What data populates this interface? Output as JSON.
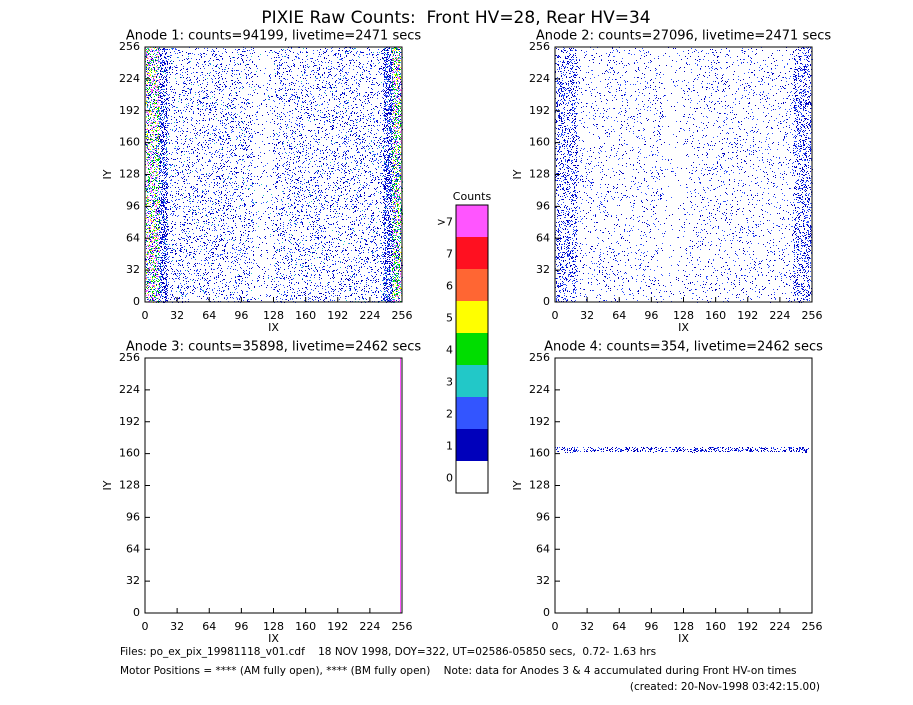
{
  "title": "PIXIE Raw Counts:  Front HV=28, Rear HV=34",
  "chart_data": [
    {
      "type": "heatmap",
      "title": "Anode 1: counts=94199, livetime=2471 secs",
      "xlabel": "IX",
      "ylabel": "IY",
      "xlim": [
        0,
        256
      ],
      "ylim": [
        0,
        256
      ],
      "xticks": [
        0,
        32,
        64,
        96,
        128,
        160,
        192,
        224,
        256
      ],
      "yticks": [
        0,
        32,
        64,
        96,
        128,
        160,
        192,
        224,
        256
      ]
    },
    {
      "type": "heatmap",
      "title": "Anode 2: counts=27096, livetime=2471 secs",
      "xlabel": "IX",
      "ylabel": "IY",
      "xlim": [
        0,
        256
      ],
      "ylim": [
        0,
        256
      ],
      "xticks": [
        0,
        32,
        64,
        96,
        128,
        160,
        192,
        224,
        256
      ],
      "yticks": [
        0,
        32,
        64,
        96,
        128,
        160,
        192,
        224,
        256
      ]
    },
    {
      "type": "heatmap",
      "title": "Anode 3: counts=35898, livetime=2462 secs",
      "xlabel": "IX",
      "ylabel": "IY",
      "xlim": [
        0,
        256
      ],
      "ylim": [
        0,
        256
      ],
      "xticks": [
        0,
        32,
        64,
        96,
        128,
        160,
        192,
        224,
        256
      ],
      "yticks": [
        0,
        32,
        64,
        96,
        128,
        160,
        192,
        224,
        256
      ]
    },
    {
      "type": "heatmap",
      "title": "Anode 4: counts=354, livetime=2462 secs",
      "xlabel": "IX",
      "ylabel": "IY",
      "xlim": [
        0,
        256
      ],
      "ylim": [
        0,
        256
      ],
      "xticks": [
        0,
        32,
        64,
        96,
        128,
        160,
        192,
        224,
        256
      ],
      "yticks": [
        0,
        32,
        64,
        96,
        128,
        160,
        192,
        224,
        256
      ]
    }
  ],
  "colorbar": {
    "title": "Counts",
    "labels": [
      "0",
      "1",
      "2",
      "3",
      "4",
      "5",
      "6",
      "7",
      ">7"
    ],
    "colors": [
      "#ffffff",
      "#0000bb",
      "#3355ff",
      "#22c8c8",
      "#00dd00",
      "#ffff00",
      "#ff6633",
      "#ff1020",
      "#ff55ff"
    ]
  },
  "footer": {
    "files": "Files: po_ex_pix_19981118_v01.cdf    18 NOV 1998, DOY=322, UT=02586-05850 secs,  0.72- 1.63 hrs",
    "motor": "Motor Positions = **** (AM fully open), **** (BM fully open)    Note: data for Anodes 3 & 4 accumulated during Front HV-on times",
    "created": "(created: 20-Nov-1998 03:42:15.00)"
  }
}
